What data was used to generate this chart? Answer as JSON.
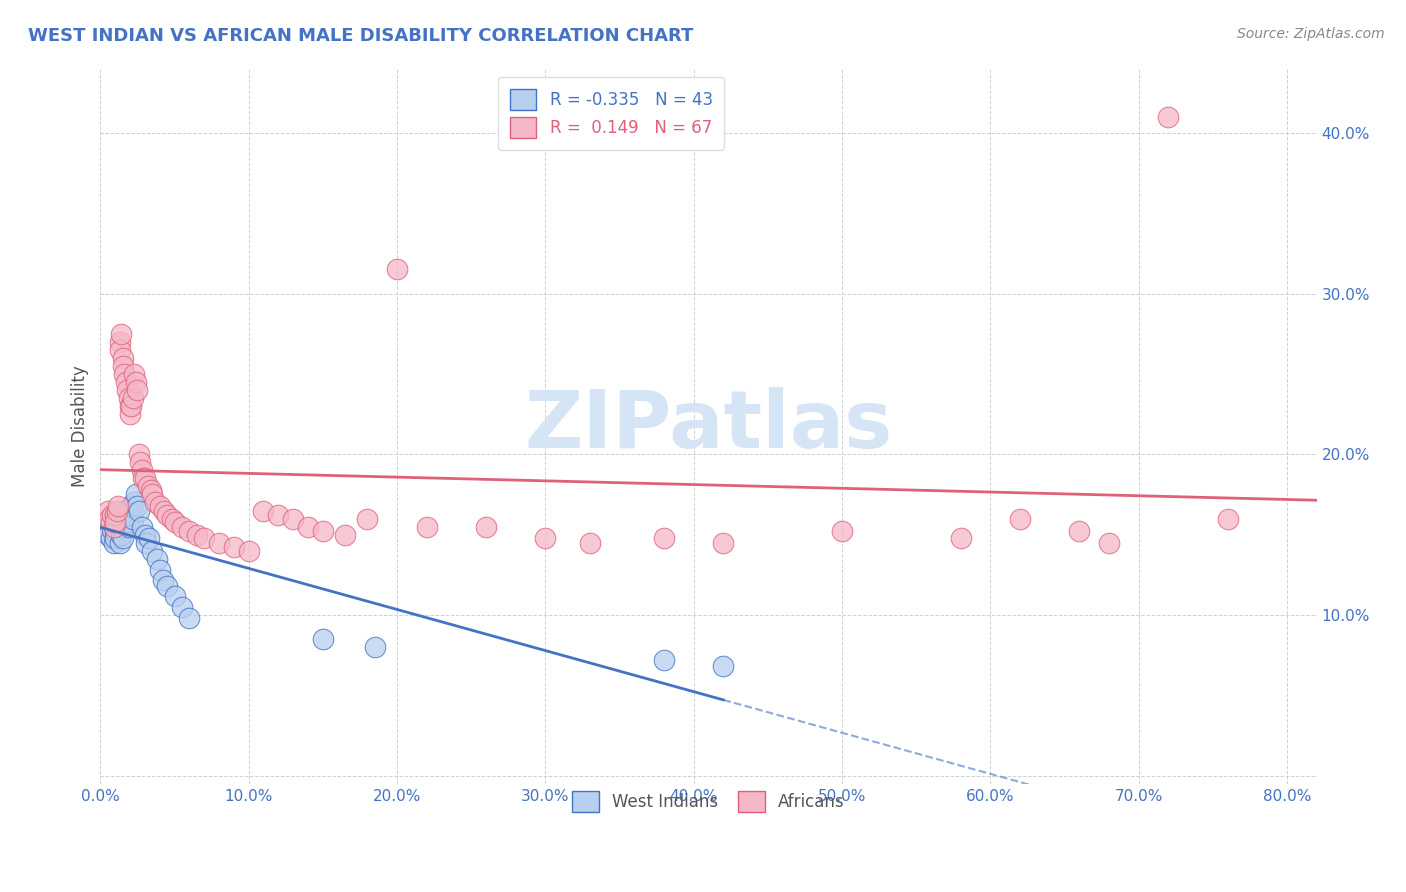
{
  "title": "WEST INDIAN VS AFRICAN MALE DISABILITY CORRELATION CHART",
  "source": "Source: ZipAtlas.com",
  "ylabel": "Male Disability",
  "watermark": "ZIPatlas",
  "legend": {
    "west_indian": {
      "R": -0.335,
      "N": 43,
      "color": "#b8d0f0",
      "line_color": "#4472c4"
    },
    "african": {
      "R": 0.149,
      "N": 67,
      "color": "#f4b8c8",
      "line_color": "#e0607a"
    }
  },
  "xlim": [
    0.0,
    0.82
  ],
  "ylim": [
    -0.005,
    0.44
  ],
  "xticks": [
    0.0,
    0.1,
    0.2,
    0.3,
    0.4,
    0.5,
    0.6,
    0.7,
    0.8
  ],
  "yticks": [
    0.0,
    0.1,
    0.2,
    0.3,
    0.4
  ],
  "ytick_labels": [
    "",
    "10.0%",
    "20.0%",
    "30.0%",
    "40.0%"
  ],
  "xtick_labels": [
    "0.0%",
    "10.0%",
    "20.0%",
    "30.0%",
    "40.0%",
    "50.0%",
    "60.0%",
    "70.0%",
    "80.0%"
  ],
  "west_indian_x": [
    0.005,
    0.007,
    0.008,
    0.009,
    0.01,
    0.01,
    0.01,
    0.012,
    0.013,
    0.013,
    0.014,
    0.015,
    0.015,
    0.016,
    0.016,
    0.017,
    0.018,
    0.018,
    0.019,
    0.02,
    0.02,
    0.021,
    0.022,
    0.023,
    0.024,
    0.025,
    0.026,
    0.028,
    0.03,
    0.031,
    0.033,
    0.035,
    0.038,
    0.04,
    0.042,
    0.045,
    0.05,
    0.055,
    0.06,
    0.15,
    0.185,
    0.38,
    0.42
  ],
  "west_indian_y": [
    0.15,
    0.148,
    0.153,
    0.145,
    0.155,
    0.152,
    0.148,
    0.158,
    0.16,
    0.145,
    0.15,
    0.155,
    0.148,
    0.162,
    0.165,
    0.16,
    0.162,
    0.158,
    0.155,
    0.165,
    0.162,
    0.168,
    0.16,
    0.17,
    0.175,
    0.168,
    0.165,
    0.155,
    0.15,
    0.145,
    0.148,
    0.14,
    0.135,
    0.128,
    0.122,
    0.118,
    0.112,
    0.105,
    0.098,
    0.085,
    0.08,
    0.072,
    0.068
  ],
  "african_x": [
    0.005,
    0.006,
    0.007,
    0.008,
    0.009,
    0.01,
    0.01,
    0.011,
    0.012,
    0.013,
    0.013,
    0.014,
    0.015,
    0.015,
    0.016,
    0.017,
    0.018,
    0.019,
    0.02,
    0.02,
    0.021,
    0.022,
    0.023,
    0.024,
    0.025,
    0.026,
    0.027,
    0.028,
    0.029,
    0.03,
    0.032,
    0.034,
    0.035,
    0.037,
    0.04,
    0.043,
    0.045,
    0.048,
    0.05,
    0.055,
    0.06,
    0.065,
    0.07,
    0.08,
    0.09,
    0.1,
    0.11,
    0.12,
    0.13,
    0.14,
    0.15,
    0.165,
    0.18,
    0.2,
    0.22,
    0.26,
    0.3,
    0.33,
    0.38,
    0.42,
    0.5,
    0.58,
    0.62,
    0.66,
    0.68,
    0.72,
    0.76
  ],
  "african_y": [
    0.165,
    0.16,
    0.158,
    0.162,
    0.155,
    0.162,
    0.158,
    0.165,
    0.168,
    0.27,
    0.265,
    0.275,
    0.26,
    0.255,
    0.25,
    0.245,
    0.24,
    0.235,
    0.23,
    0.225,
    0.23,
    0.235,
    0.25,
    0.245,
    0.24,
    0.2,
    0.195,
    0.19,
    0.185,
    0.185,
    0.18,
    0.178,
    0.175,
    0.17,
    0.168,
    0.165,
    0.162,
    0.16,
    0.158,
    0.155,
    0.152,
    0.15,
    0.148,
    0.145,
    0.142,
    0.14,
    0.165,
    0.162,
    0.16,
    0.155,
    0.152,
    0.15,
    0.16,
    0.315,
    0.155,
    0.155,
    0.148,
    0.145,
    0.148,
    0.145,
    0.152,
    0.148,
    0.16,
    0.152,
    0.145,
    0.41,
    0.16
  ],
  "background_color": "#ffffff",
  "grid_color": "#cccccc",
  "title_color": "#4472c4",
  "axis_color": "#4472c4",
  "watermark_color": "#d5e5f5",
  "source_color": "#888888"
}
